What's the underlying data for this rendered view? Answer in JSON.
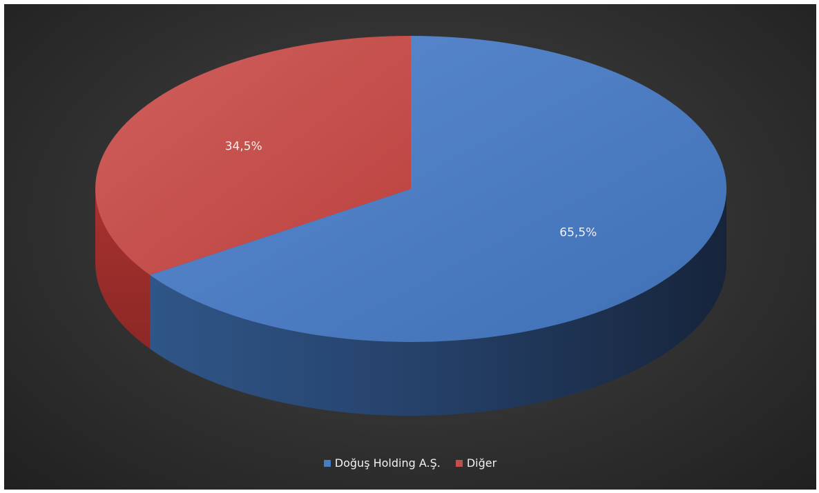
{
  "chart_data": {
    "type": "pie",
    "style": "3d",
    "categories": [
      "Doğuş Holding A.Ş.",
      "Diğer"
    ],
    "values": [
      65.5,
      34.5
    ],
    "labels": [
      "65,5%",
      "34,5%"
    ],
    "colors": [
      "#4a7cc1",
      "#c0504d"
    ],
    "title": "",
    "legend_position": "bottom"
  }
}
